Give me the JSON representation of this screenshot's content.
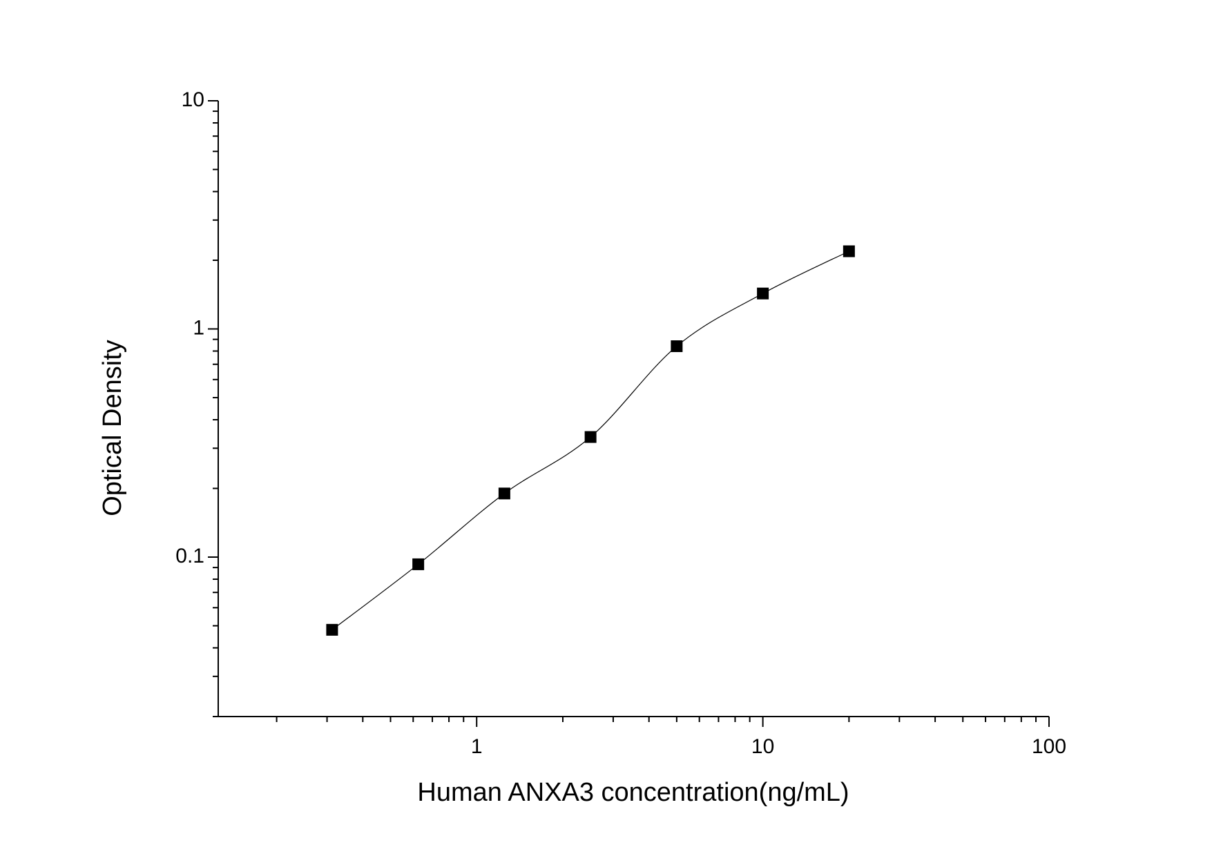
{
  "chart_data": {
    "type": "scatter",
    "x_label": "Human ANXA3 concentration(ng/mL)",
    "y_label": "Optical Density",
    "x": [
      0.3125,
      0.625,
      1.25,
      2.5,
      5,
      10,
      20
    ],
    "series": [
      {
        "color": "#000000",
        "values": [
          0.048,
          0.093,
          0.19,
          0.336,
          0.84,
          1.43,
          2.19
        ]
      }
    ],
    "xlog": true,
    "ylog": true,
    "xlim": [
      0.125,
      100
    ],
    "ylim": [
      0.02,
      10
    ],
    "xticks": [
      1,
      10,
      100
    ],
    "yticks": [
      0.1,
      1,
      10
    ],
    "fit_line": true
  }
}
